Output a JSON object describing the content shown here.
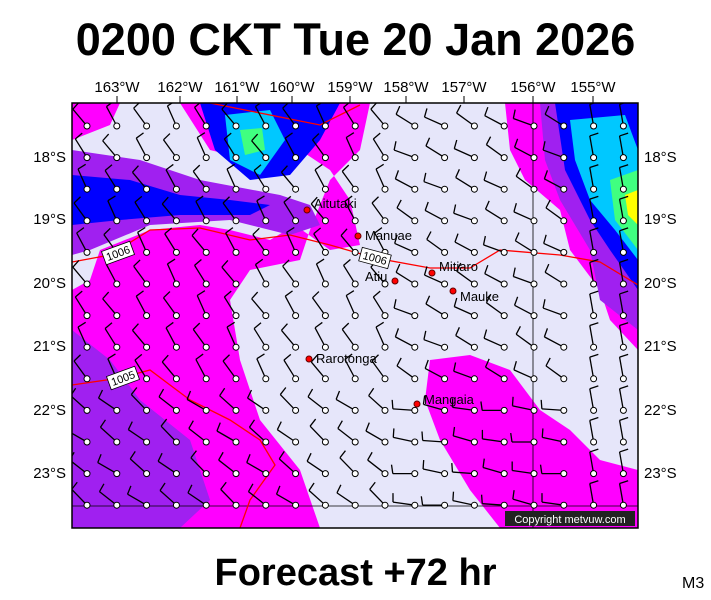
{
  "title": "0200 CKT Tue 20 Jan 2026",
  "footer": "Forecast +72 hr",
  "model_code": "M3",
  "copyright": "Copyright metvuw.com",
  "lon_labels": [
    "163°W",
    "162°W",
    "161°W",
    "160°W",
    "159°W",
    "158°W",
    "157°W",
    "156°W",
    "155°W"
  ],
  "lat_labels": [
    "18°S",
    "19°S",
    "20°S",
    "21°S",
    "22°S",
    "23°S"
  ],
  "places": [
    {
      "name": "Aitutaki"
    },
    {
      "name": "Manuae"
    },
    {
      "name": "Atiu"
    },
    {
      "name": "Mitiaro"
    },
    {
      "name": "Mauke"
    },
    {
      "name": "Rarotonga"
    },
    {
      "name": "Mangaia"
    }
  ],
  "isobar_labels": [
    "1006",
    "1006",
    "1005"
  ],
  "colors": {
    "background": "#e6e6fa",
    "magenta": "#ff00ff",
    "purple": "#a020f0",
    "blue": "#0000ff",
    "cyan": "#00c8ff",
    "green": "#40ff80",
    "yellow": "#ffff00",
    "isobar": "#ff0000",
    "place_marker": "#ff0000"
  }
}
